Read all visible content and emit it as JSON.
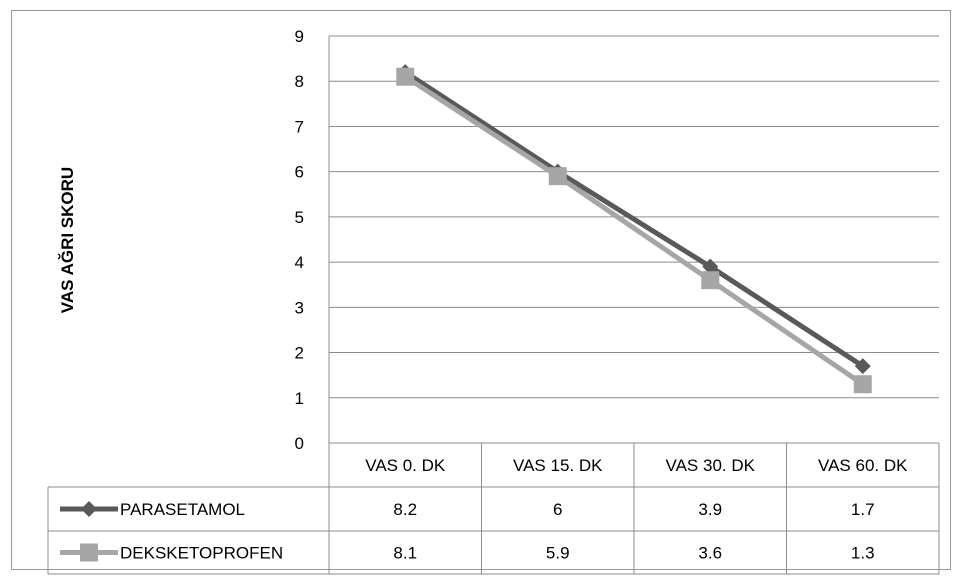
{
  "chart_data": {
    "type": "line",
    "ylabel": "VAS AĞRI SKORU",
    "xlabel": "",
    "title": "",
    "categories": [
      "VAS 0. DK",
      "VAS 15. DK",
      "VAS 30. DK",
      "VAS 60. DK"
    ],
    "ylim": [
      0,
      9
    ],
    "yticks": [
      "0",
      "1",
      "2",
      "3",
      "4",
      "5",
      "6",
      "7",
      "8",
      "9"
    ],
    "grid": true,
    "legend_placement": "data-table",
    "series": [
      {
        "name": "PARASETAMOL",
        "values": [
          8.2,
          6,
          3.9,
          1.7
        ],
        "labels": [
          "8.2",
          "6",
          "3.9",
          "1.7"
        ],
        "color": "#595959",
        "marker": "diamond"
      },
      {
        "name": "DEKSKETOPROFEN",
        "values": [
          8.1,
          5.9,
          3.6,
          1.3
        ],
        "labels": [
          "8.1",
          "5.9",
          "3.6",
          "1.3"
        ],
        "color": "#a6a6a6",
        "marker": "square"
      }
    ]
  }
}
